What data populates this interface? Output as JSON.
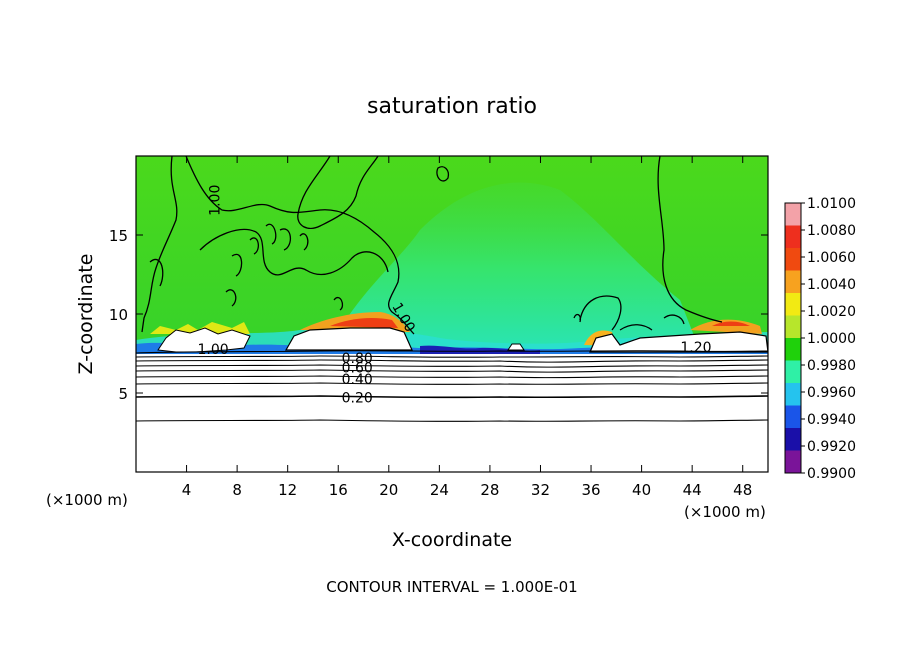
{
  "chart_data": {
    "type": "heatmap",
    "title": "saturation ratio",
    "xlabel": "X-coordinate",
    "ylabel": "Z-coordinate",
    "x_unit": "(×1000 m)",
    "x_unit_right": "(×1000 m)",
    "xlim": [
      0,
      50
    ],
    "ylim": [
      0,
      20
    ],
    "x_ticks": [
      4,
      8,
      12,
      16,
      20,
      24,
      28,
      32,
      36,
      40,
      44,
      48
    ],
    "y_ticks": [
      5,
      10,
      15
    ],
    "footer": "CONTOUR INTERVAL = 1.000E-01",
    "colorbar": {
      "labels": [
        "1.0100",
        "1.0080",
        "1.0060",
        "1.0040",
        "1.0020",
        "1.0000",
        "0.9980",
        "0.9960",
        "0.9940",
        "0.9920",
        "0.9900"
      ],
      "colors": [
        "#f3a2a8",
        "#ee2f1e",
        "#f04a10",
        "#f7a21f",
        "#f2ea13",
        "#b7e62b",
        "#1fd10b",
        "#2ff0a6",
        "#25c3ee",
        "#1a55e9",
        "#1a0fa8",
        "#7a1499"
      ]
    },
    "contour_labels": [
      {
        "text": "1.00",
        "x": 6.2,
        "z": 17.2
      },
      {
        "text": "1.00",
        "x": 21.2,
        "z": 9.8
      },
      {
        "text": "1.00",
        "x": 6.1,
        "z": 7.8
      },
      {
        "text": "1.20",
        "x": 44.3,
        "z": 7.9
      },
      {
        "text": "0.80",
        "x": 17.5,
        "z": 7.2
      },
      {
        "text": "0.60",
        "x": 17.5,
        "z": 6.6
      },
      {
        "text": "0.40",
        "x": 17.5,
        "z": 5.9
      },
      {
        "text": "0.20",
        "x": 17.5,
        "z": 4.7
      }
    ],
    "contour_levels_below_cloud": [
      7.55,
      7.2,
      6.9,
      6.6,
      6.3,
      5.9,
      5.5,
      4.9,
      3.4
    ],
    "cloud_base_height": 7.7,
    "background_value": 1.0
  }
}
